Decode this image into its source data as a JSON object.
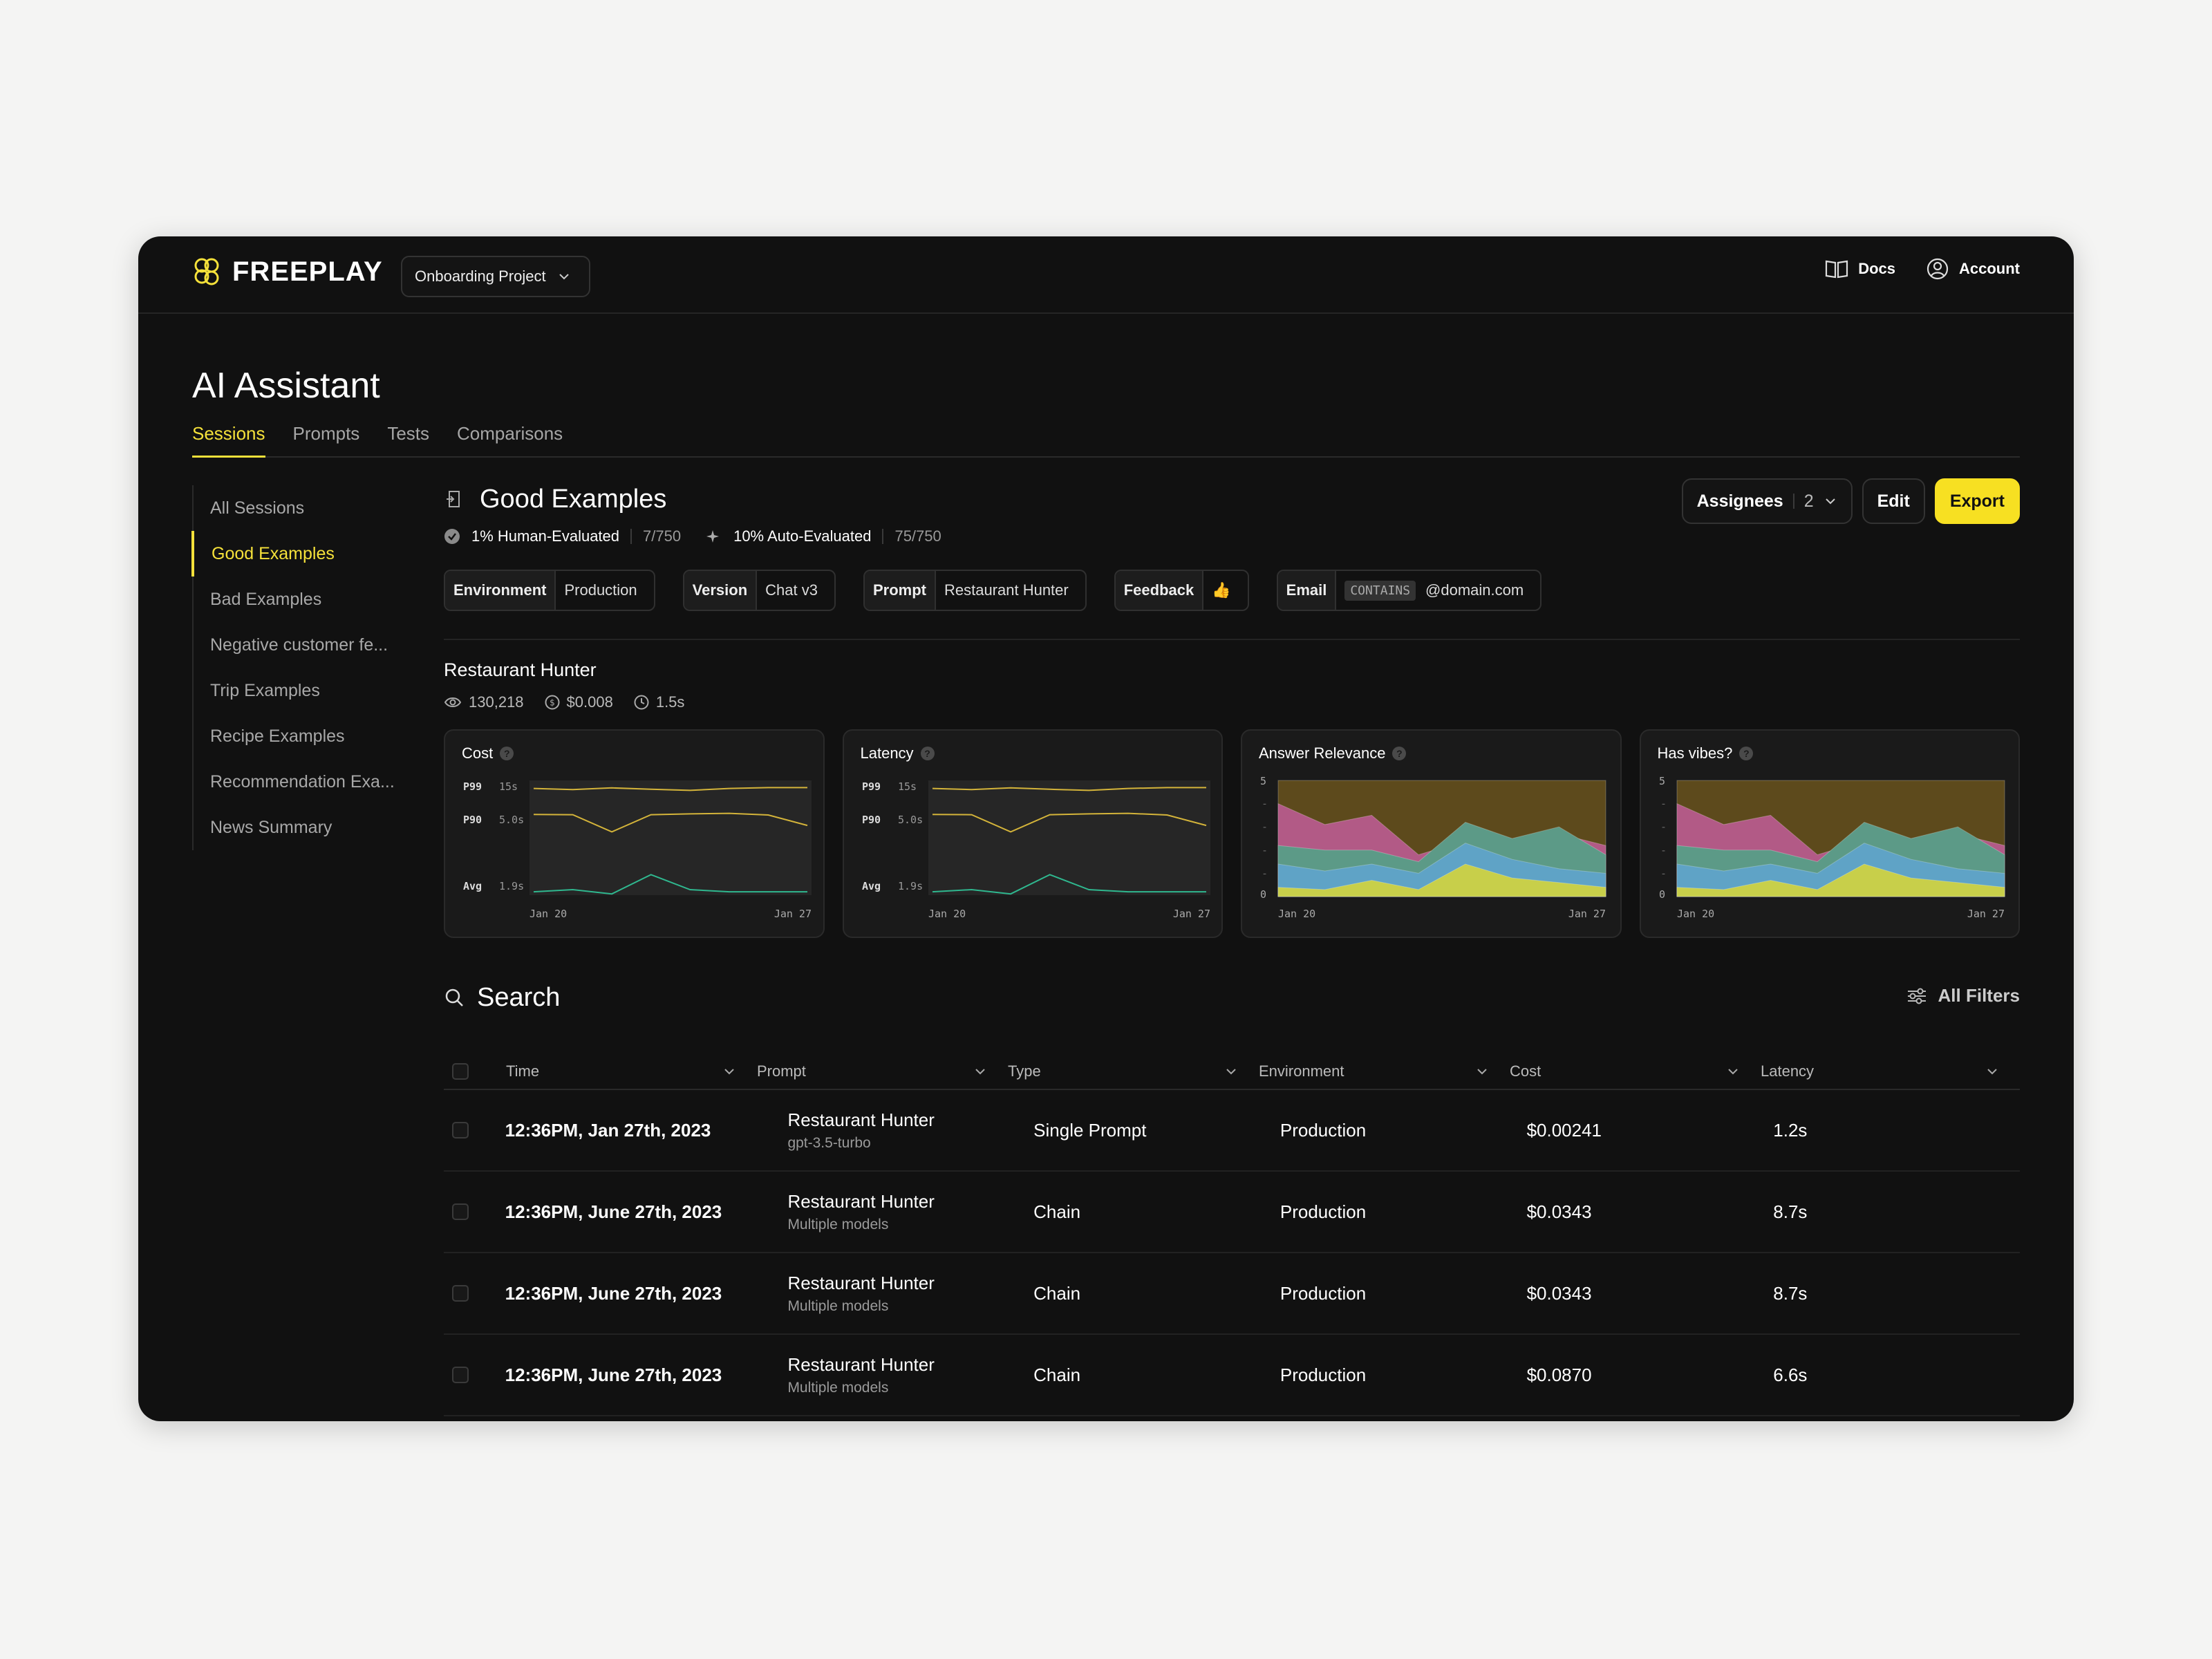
{
  "app": {
    "logo": "FREEPLAY",
    "project": "Onboarding Project",
    "docs": "Docs",
    "account": "Account"
  },
  "page": {
    "title": "AI Assistant",
    "tabs": [
      "Sessions",
      "Prompts",
      "Tests",
      "Comparisons"
    ]
  },
  "sidebar": {
    "items": [
      "All Sessions",
      "Good Examples",
      "Bad Examples",
      "Negative customer fe...",
      "Trip Examples",
      "Recipe Examples",
      "Recommendation Exa...",
      "News Summary"
    ]
  },
  "section": {
    "title": "Good Examples",
    "human_eval": "1% Human-Evaluated",
    "human_count": "7/750",
    "auto_eval": "10% Auto-Evaluated",
    "auto_count": "75/750",
    "assignees_label": "Assignees",
    "assignees_count": "2",
    "edit": "Edit",
    "export": "Export"
  },
  "filters": {
    "environment": {
      "k": "Environment",
      "v": "Production"
    },
    "version": {
      "k": "Version",
      "v": "Chat v3"
    },
    "prompt": {
      "k": "Prompt",
      "v": "Restaurant Hunter"
    },
    "feedback": {
      "k": "Feedback",
      "v": "👍"
    },
    "email": {
      "k": "Email",
      "op": "CONTAINS",
      "v": "@domain.com"
    }
  },
  "prompt_summary": {
    "title": "Restaurant Hunter",
    "views": "130,218",
    "cost": "$0.008",
    "latency": "1.5s"
  },
  "cards": {
    "cost": {
      "title": "Cost",
      "p99": "P99",
      "p99v": "15s",
      "p90": "P90",
      "p90v": "5.0s",
      "avg": "Avg",
      "avgv": "1.9s",
      "x0": "Jan 20",
      "x1": "Jan 27"
    },
    "latency": {
      "title": "Latency",
      "p99": "P99",
      "p99v": "15s",
      "p90": "P90",
      "p90v": "5.0s",
      "avg": "Avg",
      "avgv": "1.9s",
      "x0": "Jan 20",
      "x1": "Jan 27"
    },
    "relevance": {
      "title": "Answer Relevance",
      "ymax": "5",
      "ymin": "0",
      "x0": "Jan 20",
      "x1": "Jan 27"
    },
    "vibes": {
      "title": "Has vibes?",
      "ymax": "5",
      "ymin": "0",
      "x0": "Jan 20",
      "x1": "Jan 27"
    }
  },
  "chart_data": [
    {
      "type": "line",
      "title": "Cost",
      "x": [
        "Jan 20",
        "",
        "",
        "",
        "",
        "",
        "",
        "Jan 27"
      ],
      "series": [
        {
          "name": "P99",
          "values": [
            14.6,
            14.2,
            14.8,
            14.3,
            13.9,
            14.6,
            14.9,
            14.9
          ]
        },
        {
          "name": "P90",
          "values": [
            5.2,
            5.1,
            4.6,
            5.1,
            5.4,
            5.6,
            5.0,
            4.9
          ]
        },
        {
          "name": "Avg",
          "values": [
            1.8,
            1.9,
            1.7,
            2.6,
            1.9,
            1.8,
            1.8,
            1.8
          ]
        }
      ]
    },
    {
      "type": "line",
      "title": "Latency",
      "x": [
        "Jan 20",
        "",
        "",
        "",
        "",
        "",
        "",
        "Jan 27"
      ],
      "series": [
        {
          "name": "P99",
          "values": [
            14.6,
            14.2,
            14.8,
            14.3,
            13.9,
            14.6,
            14.9,
            14.9
          ]
        },
        {
          "name": "P90",
          "values": [
            5.2,
            5.1,
            4.6,
            5.1,
            5.4,
            5.6,
            5.0,
            4.9
          ]
        },
        {
          "name": "Avg",
          "values": [
            1.8,
            1.9,
            1.7,
            2.6,
            1.9,
            1.8,
            1.8,
            1.8
          ]
        }
      ]
    },
    {
      "type": "area",
      "title": "Answer Relevance",
      "ylim": [
        0,
        5
      ],
      "x": [
        "Jan 20",
        "",
        "",
        "",
        "",
        "",
        "",
        "Jan 27"
      ],
      "series": [
        {
          "values": [
            0.4,
            0.3,
            0.7,
            0.3,
            1.4,
            0.8,
            0.6,
            0.4
          ],
          "color": "#c8cf4a"
        },
        {
          "values": [
            1.4,
            1.1,
            1.4,
            1.0,
            2.3,
            1.6,
            1.2,
            1.0
          ],
          "color": "#5fa3c6"
        },
        {
          "values": [
            2.2,
            2.0,
            2.0,
            1.5,
            3.2,
            2.5,
            3.0,
            1.8
          ],
          "color": "#5c9a87"
        },
        {
          "values": [
            4.0,
            3.1,
            3.5,
            1.8,
            2.4,
            2.3,
            2.7,
            2.2
          ],
          "color": "#b25a86"
        },
        {
          "values": [
            5,
            5,
            5,
            5,
            5,
            5,
            5,
            5
          ],
          "color": "#5d4a1c"
        }
      ]
    },
    {
      "type": "area",
      "title": "Has vibes?",
      "ylim": [
        0,
        5
      ],
      "x": [
        "Jan 20",
        "",
        "",
        "",
        "",
        "",
        "",
        "Jan 27"
      ],
      "series": [
        {
          "values": [
            0.4,
            0.3,
            0.7,
            0.3,
            1.4,
            0.8,
            0.6,
            0.4
          ],
          "color": "#c8cf4a"
        },
        {
          "values": [
            1.4,
            1.1,
            1.4,
            1.0,
            2.3,
            1.6,
            1.2,
            1.0
          ],
          "color": "#5fa3c6"
        },
        {
          "values": [
            2.2,
            2.0,
            2.0,
            1.5,
            3.2,
            2.5,
            3.0,
            1.8
          ],
          "color": "#5c9a87"
        },
        {
          "values": [
            4.0,
            3.1,
            3.5,
            1.8,
            2.4,
            2.3,
            2.7,
            2.2
          ],
          "color": "#b25a86"
        },
        {
          "values": [
            5,
            5,
            5,
            5,
            5,
            5,
            5,
            5
          ],
          "color": "#5d4a1c"
        }
      ]
    }
  ],
  "search": {
    "title": "Search",
    "all_filters": "All Filters"
  },
  "table": {
    "headers": [
      "Time",
      "Prompt",
      "Type",
      "Environment",
      "Cost",
      "Latency"
    ],
    "rows": [
      {
        "time": "12:36PM, Jan 27th, 2023",
        "prompt": "Restaurant Hunter",
        "model": "gpt-3.5-turbo",
        "type": "Single Prompt",
        "env": "Production",
        "cost": "$0.00241",
        "latency": "1.2s"
      },
      {
        "time": "12:36PM, June 27th, 2023",
        "prompt": "Restaurant Hunter",
        "model": "Multiple models",
        "type": "Chain",
        "env": "Production",
        "cost": "$0.0343",
        "latency": "8.7s"
      },
      {
        "time": "12:36PM, June 27th, 2023",
        "prompt": "Restaurant Hunter",
        "model": "Multiple models",
        "type": "Chain",
        "env": "Production",
        "cost": "$0.0343",
        "latency": "8.7s"
      },
      {
        "time": "12:36PM, June 27th, 2023",
        "prompt": "Restaurant Hunter",
        "model": "Multiple models",
        "type": "Chain",
        "env": "Production",
        "cost": "$0.0870",
        "latency": "6.6s"
      }
    ]
  },
  "colors": {
    "accent": "#f5e13a",
    "bg": "#111111",
    "line_top": "#d4b43a",
    "line_avg": "#2fb88f"
  }
}
